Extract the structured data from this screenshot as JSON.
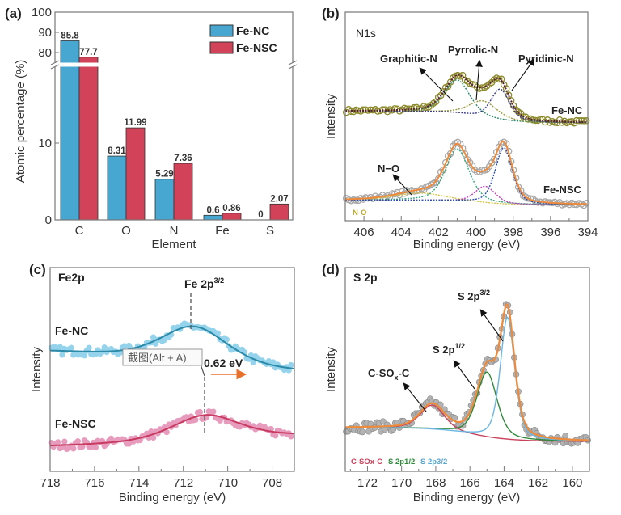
{
  "chart_data": [
    {
      "panel_label": "(a)",
      "type": "bar",
      "categories": [
        "C",
        "O",
        "N",
        "Fe",
        "S"
      ],
      "series": [
        {
          "name": "Fe-NC",
          "values": [
            85.8,
            8.31,
            5.29,
            0.6,
            0
          ],
          "labels": [
            "85.8",
            "8.31",
            "5.29",
            "0.6",
            "0"
          ],
          "color": "#47a7d0"
        },
        {
          "name": "Fe-NSC",
          "values": [
            77.7,
            11.99,
            7.36,
            0.86,
            2.07
          ],
          "labels": [
            "77.7",
            "11.99",
            "7.36",
            "0.86",
            "2.07"
          ],
          "color": "#d2435a"
        }
      ],
      "xlabel": "Element",
      "ylabel": "Atomic percentage (%)",
      "y_axis_break": true,
      "ylim_lower": [
        0,
        20
      ],
      "ylim_upper": [
        72,
        100
      ],
      "yticks_lower": [
        "0",
        "10"
      ],
      "yticks_upper": [
        "80",
        "90",
        "100"
      ],
      "legend": "top-right",
      "grid": false
    },
    {
      "panel_label": "(b)",
      "type": "line+scatter",
      "title": "N1s",
      "xlabel": "Binding energy (eV)",
      "ylabel": "Intensity",
      "xlim": [
        407,
        394
      ],
      "xticks": [
        "406",
        "404",
        "402",
        "400",
        "398",
        "396",
        "394"
      ],
      "spectra": [
        {
          "name": "Fe-NC",
          "marker_color": "#8c8a2c",
          "envelope_color": "#5a2030",
          "baseline": [
            52.5,
            47
          ],
          "peaks": [
            {
              "species": "Graphitic-N",
              "center": 401.0,
              "fwhm": 1.6,
              "height": 16,
              "color": "#2a8a6e"
            },
            {
              "species": "Pyrrolic-N",
              "center": 399.6,
              "fwhm": 1.8,
              "height": 8,
              "color": "#9a9a3a"
            },
            {
              "species": "Pyridinic-N",
              "center": 398.7,
              "fwhm": 1.2,
              "height": 15,
              "color": "#3a3a8a"
            }
          ]
        },
        {
          "name": "Fe-NSC",
          "marker_color": "#a8a8a8",
          "envelope_color": "#ee8a3a",
          "baseline": [
            9.8,
            7.6
          ],
          "peaks": [
            {
              "species": "N-O",
              "center": 403.0,
              "fwhm": 3.2,
              "height": 3.5,
              "color": "#d8c640"
            },
            {
              "species": "Graphitic-N",
              "center": 401.0,
              "fwhm": 1.5,
              "height": 25,
              "color": "#35a882"
            },
            {
              "species": "Pyrrolic-N",
              "center": 399.5,
              "fwhm": 1.3,
              "height": 8,
              "color": "#c540c0"
            },
            {
              "species": "Pyridinic-N",
              "center": 398.5,
              "fwhm": 1.1,
              "height": 27,
              "color": "#3050b0"
            }
          ]
        }
      ],
      "annotations": {
        "graphitic": {
          "text": "Graphitic-N",
          "color": "#3a8a4a"
        },
        "pyrrolic": {
          "text": "Pyrrolic-N",
          "color": "#e77a8a"
        },
        "pyridinic": {
          "text": "Pyridinic-N",
          "color": "#4a6fb5"
        },
        "no": {
          "text": "N−O",
          "color": "#8b2a2a"
        },
        "fe_nc": {
          "text": "Fe-NC"
        },
        "fe_nsc": {
          "text": "Fe-NSC"
        }
      }
    },
    {
      "panel_label": "(c)",
      "type": "line+scatter",
      "title": "Fe2p",
      "xlabel": "Binding energy (eV)",
      "ylabel": "Intensity",
      "xlim": [
        718,
        707
      ],
      "xticks": [
        "718",
        "716",
        "714",
        "712",
        "710",
        "708"
      ],
      "spectra": [
        {
          "name": "Fe-NC",
          "marker_color": "#95d3ec",
          "envelope_color": "#2a8aa8",
          "baseline": [
            60.3,
            47
          ],
          "peaks": [
            {
              "center": 711.5,
              "fwhm": 3.6,
              "height": 18
            }
          ]
        },
        {
          "name": "Fe-NSC",
          "marker_color": "#e79cbd",
          "envelope_color": "#c83a60",
          "baseline": [
            11.5,
            18.6
          ],
          "peaks": [
            {
              "center": 711.0,
              "fwhm": 3.6,
              "height": 12
            }
          ]
        }
      ],
      "peak_marker": {
        "text": "Fe 2p",
        "sup": "3/2",
        "positions_eV": [
          711.7,
          711.08
        ]
      },
      "shift": {
        "text": "0.62 eV",
        "arrow_color": "#e8702a"
      },
      "labels": {
        "fe_nc": "Fe-NC",
        "fe_nsc": "Fe-NSC"
      },
      "overlay_tooltip": "截图(Alt + A)"
    },
    {
      "panel_label": "(d)",
      "type": "line+scatter",
      "title": "S 2p",
      "xlabel": "Binding energy (eV)",
      "ylabel": "Intensity",
      "xlim": [
        173.3,
        159
      ],
      "xticks": [
        "172",
        "170",
        "168",
        "166",
        "164",
        "162",
        "160"
      ],
      "spectra": [
        {
          "name": "S 2p",
          "marker_color": "#b3b3b3",
          "envelope_color": "#ee8a3a",
          "baseline": [
            21.4,
            14.7
          ],
          "peaks": [
            {
              "species": "C-SOx-C",
              "center": 168.2,
              "fwhm": 1.7,
              "height": 12,
              "color": "#c8405a"
            },
            {
              "species": "S 2p1/2",
              "center": 165.0,
              "fwhm": 1.4,
              "height": 32,
              "color": "#2e8a3a"
            },
            {
              "species": "S 2p3/2",
              "center": 163.8,
              "fwhm": 1.0,
              "height": 60,
              "color": "#6ab6e0"
            }
          ]
        }
      ],
      "annotations": {
        "csox": {
          "text": "C-SO",
          "sub": "x",
          "tail": "-C",
          "color": "#c8405a"
        },
        "s2p12": {
          "text": "S 2p",
          "sup": "1/2",
          "color": "#2e8a3a"
        },
        "s2p32": {
          "text": "S 2p",
          "sup": "3/2",
          "color": "#6ab6e0"
        }
      }
    }
  ]
}
